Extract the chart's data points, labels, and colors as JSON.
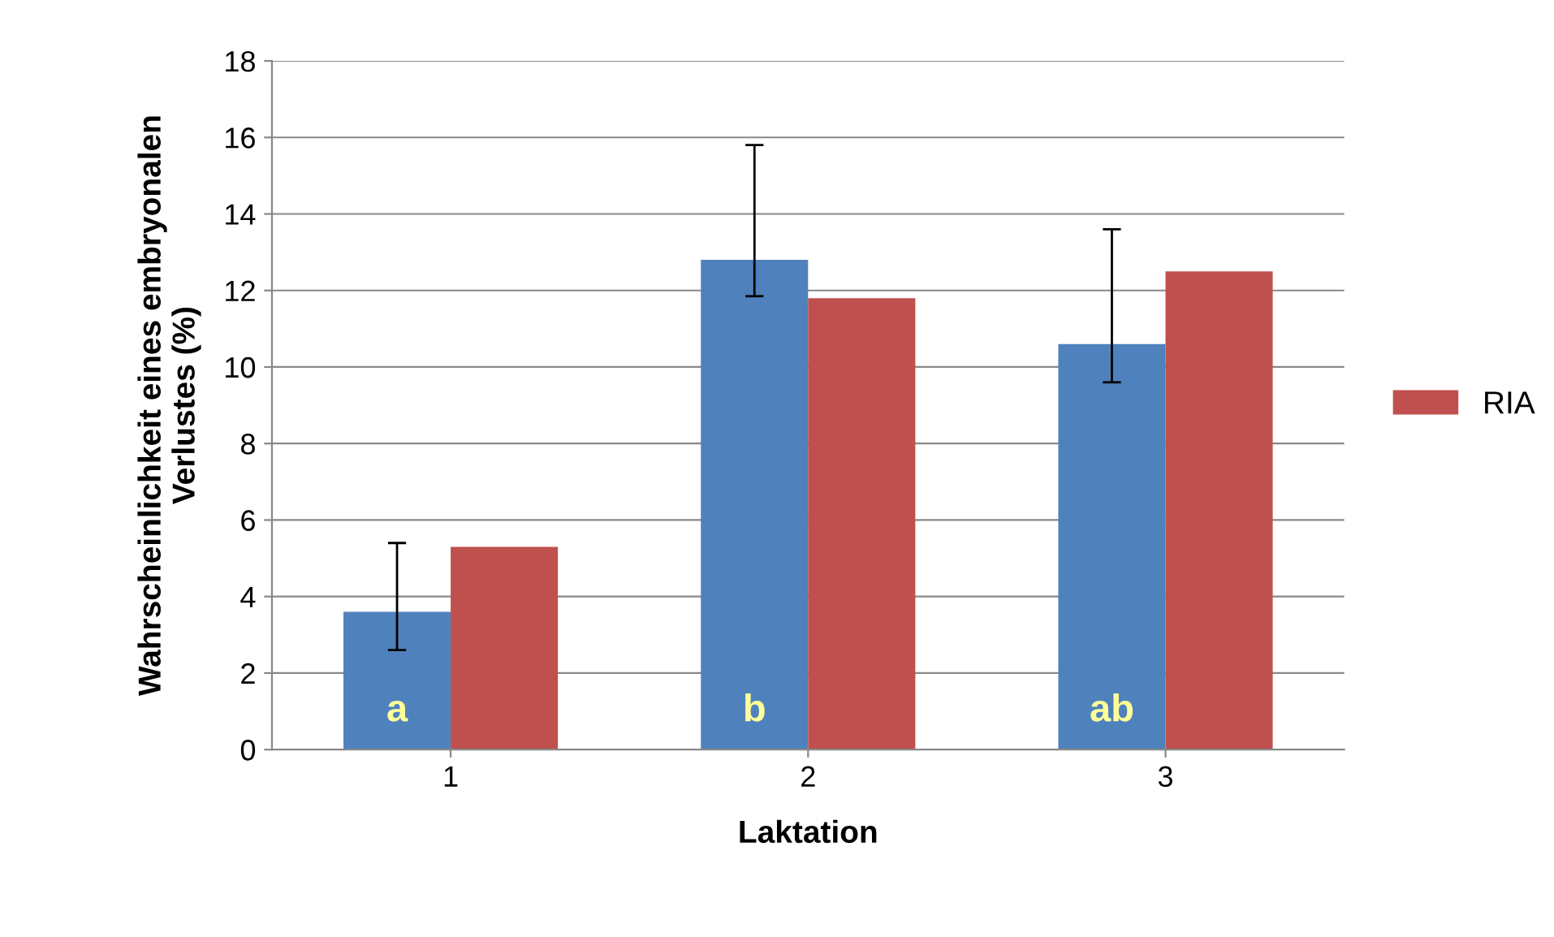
{
  "chart_data": {
    "type": "bar",
    "xlabel": "Laktation",
    "ylabel": "Wahrscheinlichkeit eines embryonalen\nVerlustes (%)",
    "categories": [
      "1",
      "2",
      "3"
    ],
    "series": [
      {
        "color": "#4f81bd",
        "values": [
          3.6,
          12.8,
          10.6
        ],
        "errors": [
          [
            2.6,
            5.4
          ],
          [
            11.85,
            15.8
          ],
          [
            9.6,
            13.6
          ]
        ]
      },
      {
        "name": "RIA",
        "color": "#c0504d",
        "values": [
          5.3,
          11.8,
          12.5
        ]
      }
    ],
    "annotations": [
      {
        "text": "a",
        "x": "1",
        "y": 1.0
      },
      {
        "text": "b",
        "x": "2",
        "y": 1.0
      },
      {
        "text": "ab",
        "x": "3",
        "y": 1.0
      }
    ],
    "ylim": [
      0,
      18
    ],
    "yticks": [
      0,
      2,
      4,
      6,
      8,
      10,
      12,
      14,
      16,
      18
    ],
    "grid": "y",
    "legend": "right"
  }
}
